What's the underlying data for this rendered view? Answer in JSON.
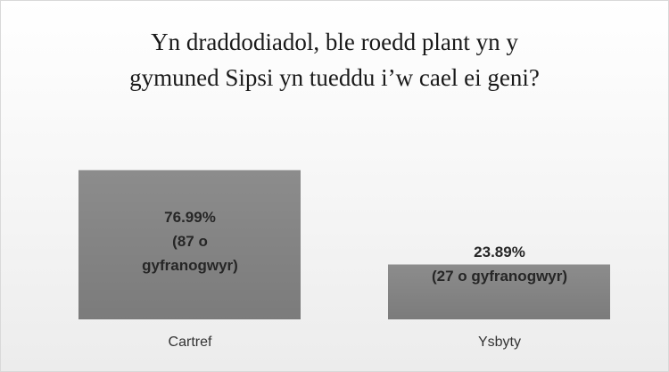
{
  "chart_data": {
    "type": "bar",
    "title": "Yn draddodiadol, ble roedd plant yn y\ngymuned Sipsi yn tueddu i’w cael ei geni?",
    "categories": [
      "Cartref",
      "Ysbyty"
    ],
    "values": [
      76.99,
      23.89
    ],
    "value_labels": [
      "76.99%\n(87 o\ngyfranogwyr)",
      "23.89%\n(27 o gyfranogwyr)"
    ],
    "color": "#8c8c8c",
    "ylim": [
      -7,
      107
    ]
  }
}
